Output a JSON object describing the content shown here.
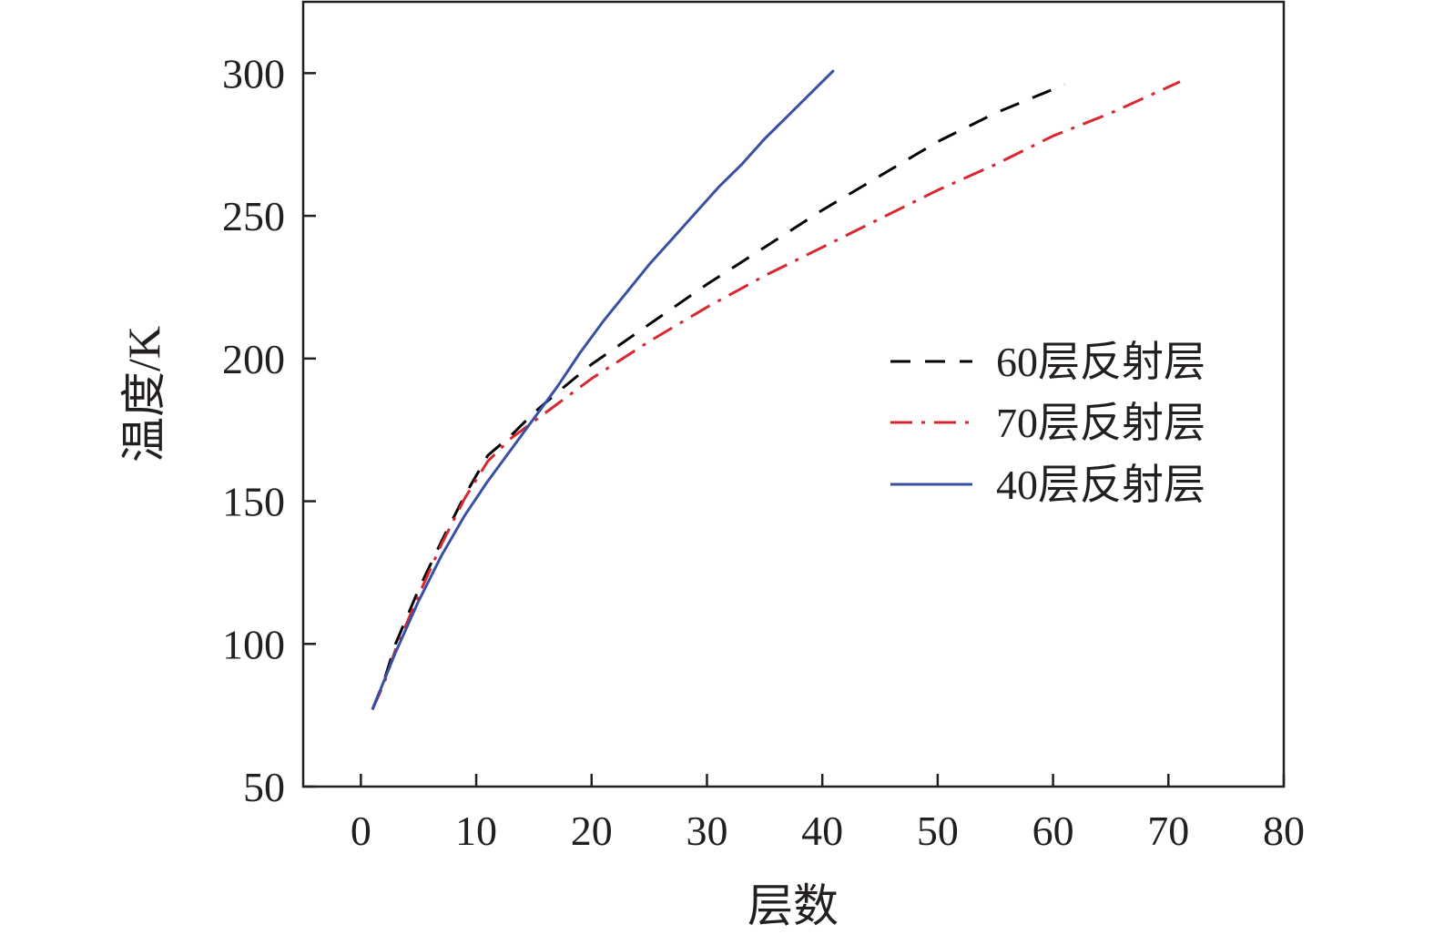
{
  "chart_data": {
    "type": "line",
    "title": "",
    "xlabel": "层数",
    "ylabel": "温度/K",
    "xlim": [
      -5,
      80
    ],
    "ylim": [
      50,
      325
    ],
    "xticks": [
      0,
      10,
      20,
      30,
      40,
      50,
      60,
      70,
      80
    ],
    "yticks": [
      50,
      100,
      150,
      200,
      250,
      300
    ],
    "x_tick_labels": [
      "0",
      "10",
      "20",
      "30",
      "40",
      "50",
      "60",
      "70",
      "80"
    ],
    "y_tick_labels": [
      "50",
      "100",
      "150",
      "200",
      "250",
      "300"
    ],
    "grid": false,
    "legend_position": "right",
    "series": [
      {
        "name": "60层反射层",
        "color": "#000000",
        "dash": "dashed",
        "x": [
          1,
          2,
          3,
          5,
          7,
          9,
          11,
          13,
          15,
          17,
          20,
          25,
          30,
          35,
          40,
          45,
          50,
          55,
          61
        ],
        "y": [
          77,
          87,
          100,
          119,
          136,
          152,
          166,
          173,
          181,
          188,
          198,
          212,
          226,
          239,
          252,
          264,
          276,
          286,
          296
        ]
      },
      {
        "name": "70层反射层",
        "color": "#d7282f",
        "dash": "dash-dot",
        "x": [
          1,
          2,
          3,
          5,
          7,
          9,
          11,
          13,
          15,
          17,
          20,
          25,
          30,
          35,
          40,
          45,
          50,
          55,
          60,
          65,
          71
        ],
        "y": [
          77,
          86,
          98,
          117,
          135,
          151,
          164,
          172,
          178,
          184,
          193,
          206,
          218,
          229,
          239,
          249,
          259,
          268,
          278,
          286,
          297
        ]
      },
      {
        "name": "40层反射层",
        "color": "#3750a3",
        "dash": "solid",
        "x": [
          1,
          3,
          5,
          7,
          9,
          11,
          13,
          15,
          17,
          19,
          21,
          23,
          25,
          27,
          29,
          31,
          33,
          35,
          37,
          39,
          41
        ],
        "y": [
          77,
          97,
          115,
          131,
          145,
          157,
          168,
          179,
          190,
          202,
          213,
          223,
          233,
          242,
          251,
          260,
          268,
          277,
          285,
          293,
          301
        ]
      }
    ]
  }
}
